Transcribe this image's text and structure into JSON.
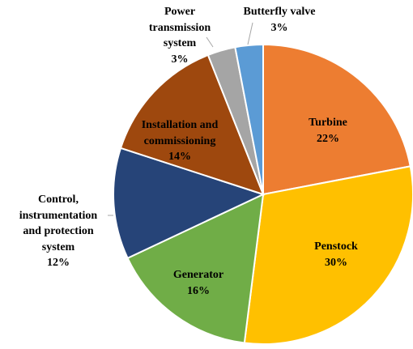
{
  "chart_data": {
    "type": "pie",
    "categories": [
      "Turbine",
      "Penstock",
      "Generator",
      "Control, instrumentation and protection system",
      "Installation and commissioning",
      "Power transmission system",
      "Butterfly valve"
    ],
    "values": [
      22,
      30,
      16,
      12,
      14,
      3,
      3
    ],
    "value_labels": [
      "22%",
      "30%",
      "16%",
      "12%",
      "14%",
      "3%",
      "3%"
    ],
    "colors": [
      "#ed7d31",
      "#ffc000",
      "#70ad47",
      "#264478",
      "#9e480e",
      "#a5a5a5",
      "#5b9bd5"
    ]
  }
}
